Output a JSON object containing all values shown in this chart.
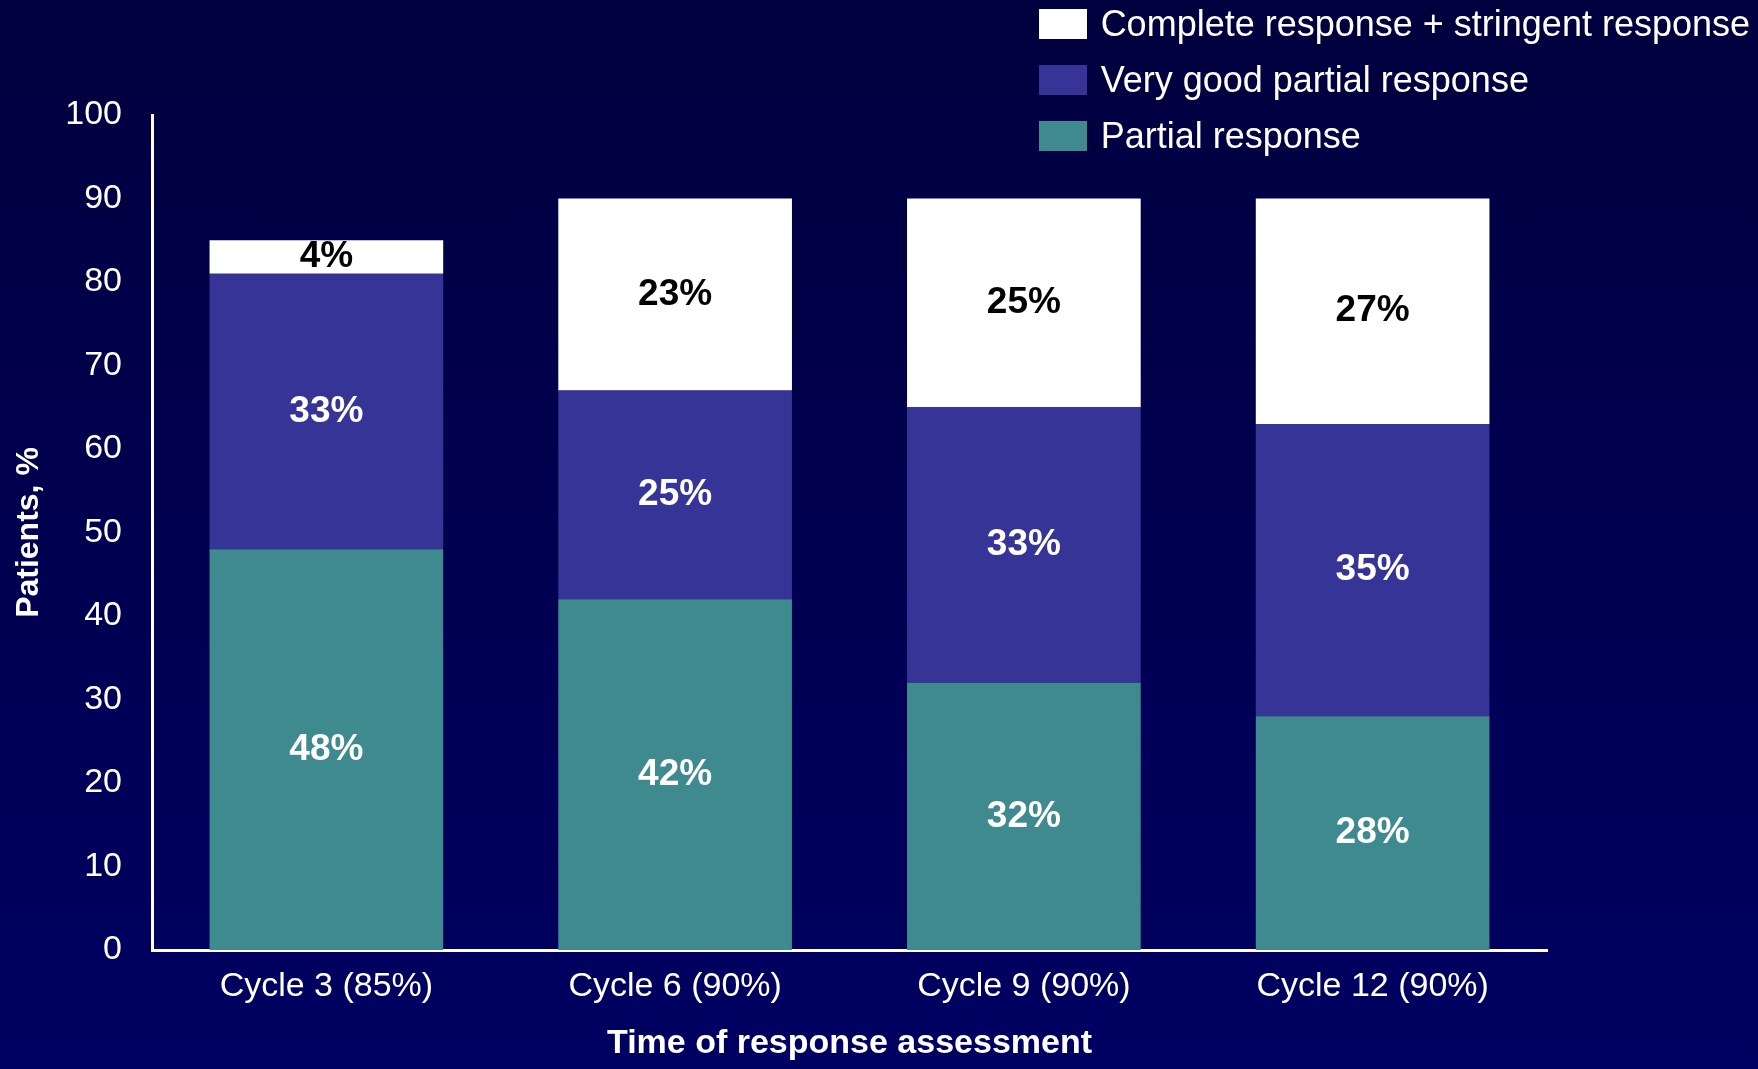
{
  "chart_data": {
    "type": "bar",
    "stacked": true,
    "xlabel": "Time of response assessment",
    "ylabel": "Patients, %",
    "categories": [
      "Cycle 3 (85%)",
      "Cycle 6 (90%)",
      "Cycle 9 (90%)",
      "Cycle 12 (90%)"
    ],
    "series": [
      {
        "name": "Partial response",
        "color": "#3e8a8f",
        "values": [
          48,
          42,
          32,
          28
        ],
        "value_labels": [
          "48%",
          "42%",
          "32%",
          "28%"
        ]
      },
      {
        "name": "Very good partial response",
        "color": "#363597",
        "values": [
          33,
          25,
          33,
          35
        ],
        "value_labels": [
          "33%",
          "25%",
          "33%",
          "35%"
        ]
      },
      {
        "name": "Complete response + stringent response",
        "color": "#ffffff",
        "values": [
          4,
          23,
          25,
          27
        ],
        "value_labels": [
          "4%",
          "23%",
          "25%",
          "27%"
        ]
      }
    ],
    "ylim": [
      0,
      100
    ],
    "yticks": [
      0,
      10,
      20,
      30,
      40,
      50,
      60,
      70,
      80,
      90,
      100
    ],
    "grid": false,
    "legend": "top right"
  }
}
